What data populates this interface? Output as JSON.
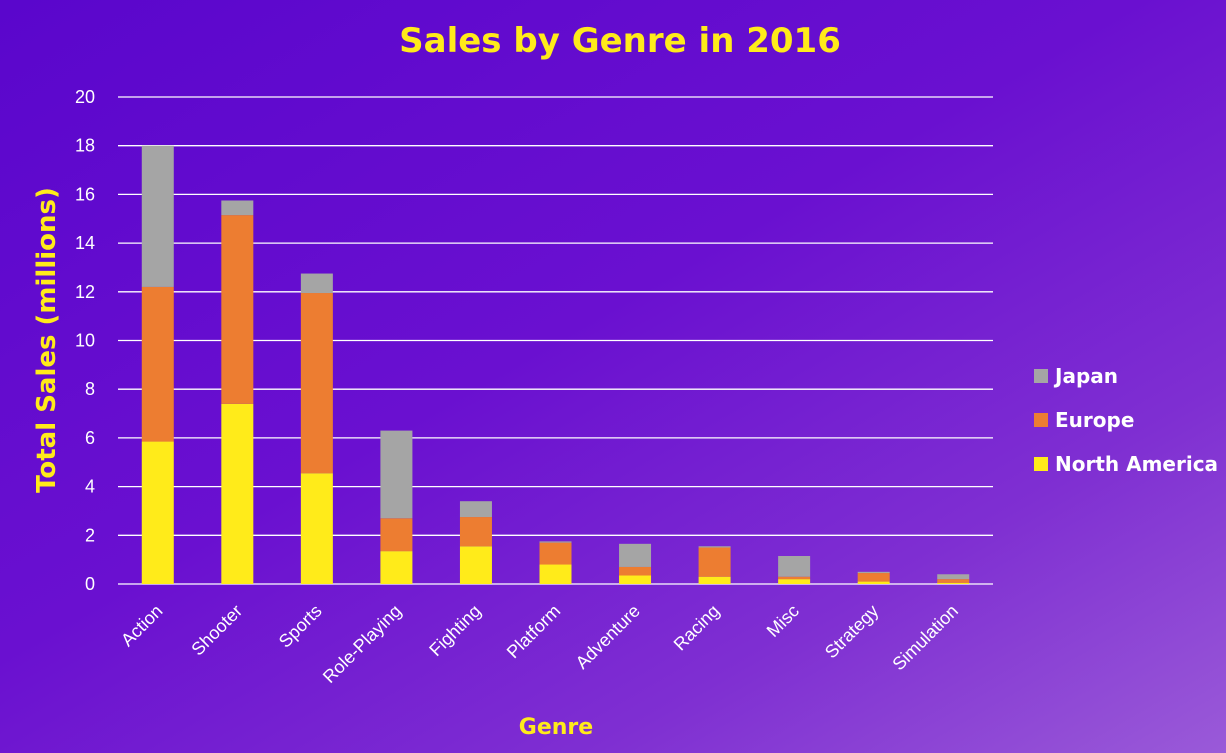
{
  "chart_data": {
    "type": "bar",
    "stacked": true,
    "title": "Sales by Genre in 2016",
    "xlabel": "Genre",
    "ylabel": "Total Sales (millions)",
    "ylim": [
      0,
      20
    ],
    "yticks": [
      0,
      2,
      4,
      6,
      8,
      10,
      12,
      14,
      16,
      18,
      20
    ],
    "grid": true,
    "legend_position": "right",
    "categories": [
      "Action",
      "Shooter",
      "Sports",
      "Role-Playing",
      "Fighting",
      "Platform",
      "Adventure",
      "Racing",
      "Misc",
      "Strategy",
      "Simulation"
    ],
    "series": [
      {
        "name": "North America",
        "color": "#ffeb1a",
        "values": [
          5.85,
          7.4,
          4.55,
          1.35,
          1.55,
          0.8,
          0.35,
          0.3,
          0.2,
          0.1,
          0.05
        ]
      },
      {
        "name": "Europe",
        "color": "#ed7d31",
        "values": [
          6.35,
          7.75,
          7.4,
          1.35,
          1.2,
          0.9,
          0.35,
          1.2,
          0.1,
          0.35,
          0.15
        ]
      },
      {
        "name": "Japan",
        "color": "#a5a5a5",
        "values": [
          5.8,
          0.6,
          0.8,
          3.6,
          0.65,
          0.05,
          0.95,
          0.05,
          0.85,
          0.05,
          0.2
        ]
      }
    ],
    "colors": {
      "title": "#ffeb1a",
      "axis_title": "#ffeb1a",
      "text": "#ffffff",
      "grid": "#ffffff"
    }
  }
}
